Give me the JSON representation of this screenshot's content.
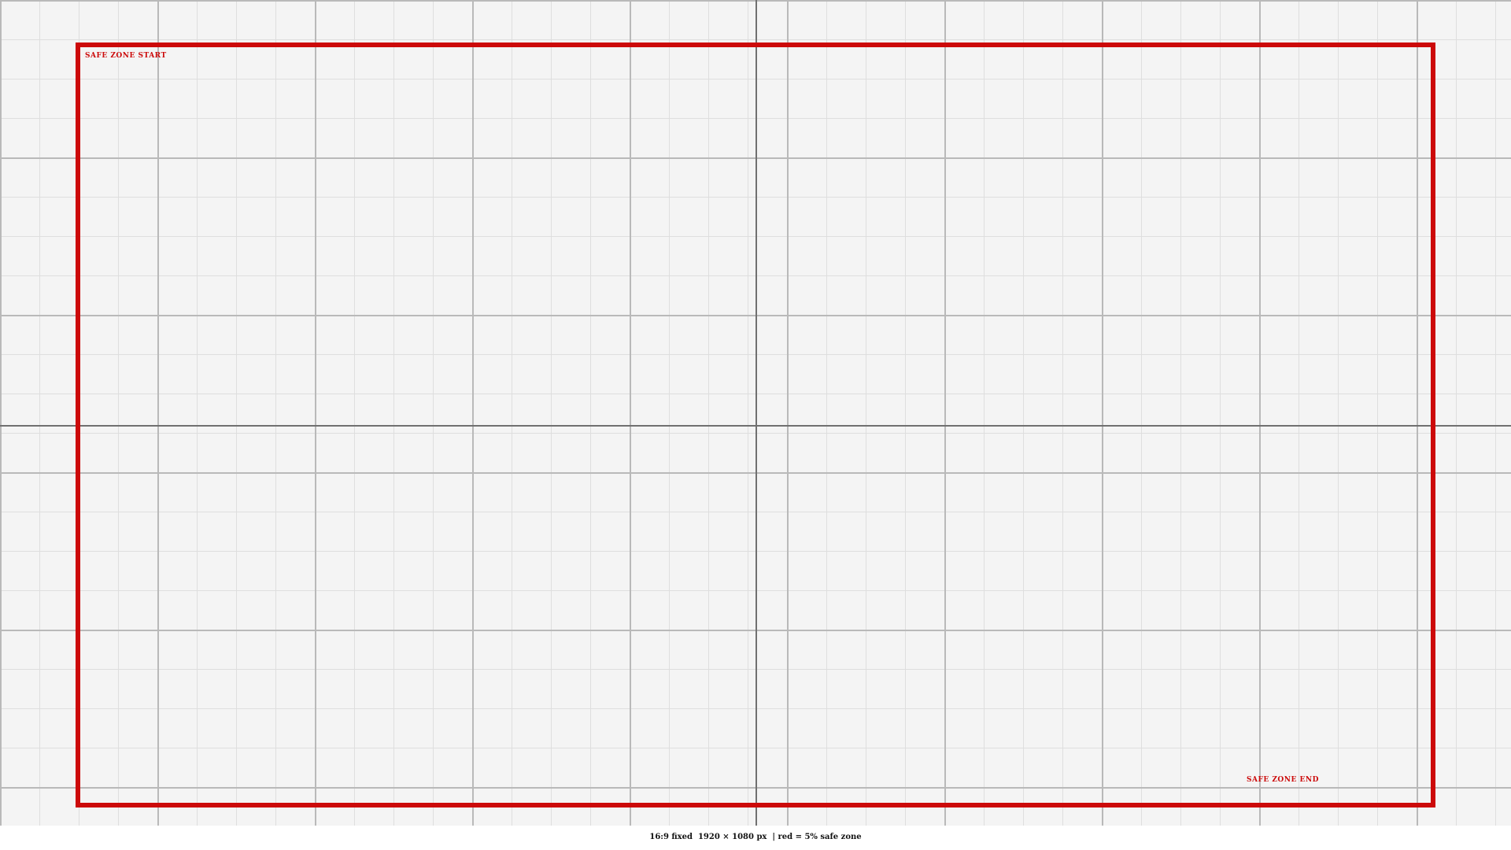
{
  "canvas": {
    "background_color": "#f4f4f4",
    "minor_grid_color": "#dedede",
    "major_grid_color": "#b9b9b9",
    "center_line_color": "#707070"
  },
  "safe_zone": {
    "border_color": "#cc0a0a",
    "start_label": "SAFE ZONE START",
    "end_label": "SAFE ZONE END"
  },
  "footer": {
    "caption": "16:9 fixed  1920 × 1080 px  | red = 5% safe zone"
  }
}
